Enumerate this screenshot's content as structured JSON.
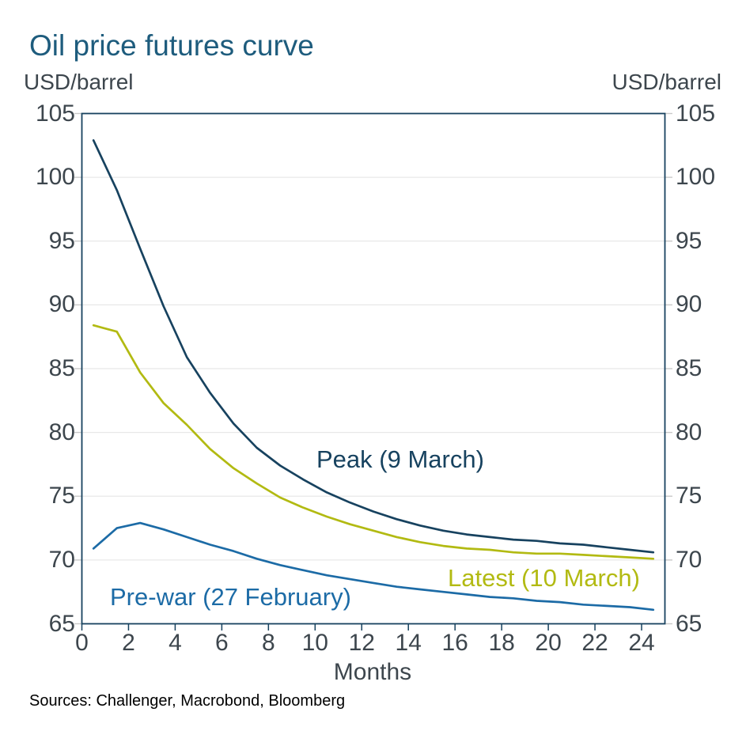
{
  "title": "Oil price futures curve",
  "y_unit_left": "USD/barrel",
  "y_unit_right": "USD/barrel",
  "sources": "Sources: Challenger, Macrobond, Bloomberg",
  "colors": {
    "title": "#1e5c7d",
    "axis_text": "#3d464d",
    "frame": "#17425f",
    "grid": "#e8e8e8",
    "outer_tick": "#c9c9c9",
    "sources_text": "#000000"
  },
  "chart_data": {
    "type": "line",
    "title": "Oil price futures curve",
    "xlabel": "Months",
    "ylabel": "USD/barrel",
    "xlim": [
      0,
      25
    ],
    "ylim": [
      65,
      105
    ],
    "x_ticks": [
      0,
      2,
      4,
      6,
      8,
      10,
      12,
      14,
      16,
      18,
      20,
      22,
      24
    ],
    "y_ticks": [
      65,
      70,
      75,
      80,
      85,
      90,
      95,
      100,
      105
    ],
    "grid": "horizontal",
    "legend_position": "inline-labels",
    "x": [
      0.5,
      1.5,
      2.5,
      3.5,
      4.5,
      5.5,
      6.5,
      7.5,
      8.5,
      9.5,
      10.5,
      11.5,
      12.5,
      13.5,
      14.5,
      15.5,
      16.5,
      17.5,
      18.5,
      19.5,
      20.5,
      21.5,
      22.5,
      23.5,
      24.5
    ],
    "series": [
      {
        "name": "Peak (9 March)",
        "color": "#17425f",
        "values": [
          102.9,
          99.0,
          94.4,
          89.9,
          85.9,
          83.1,
          80.7,
          78.8,
          77.4,
          76.3,
          75.3,
          74.5,
          73.8,
          73.2,
          72.7,
          72.3,
          72.0,
          71.8,
          71.6,
          71.5,
          71.3,
          71.2,
          71.0,
          70.8,
          70.6
        ]
      },
      {
        "name": "Latest (10 March)",
        "color": "#b2ba12",
        "values": [
          88.4,
          87.9,
          84.7,
          82.3,
          80.6,
          78.7,
          77.2,
          76.0,
          74.9,
          74.1,
          73.4,
          72.8,
          72.3,
          71.8,
          71.4,
          71.1,
          70.9,
          70.8,
          70.6,
          70.5,
          70.5,
          70.4,
          70.3,
          70.2,
          70.1
        ]
      },
      {
        "name": "Pre-war (27 February)",
        "color": "#1c6ba6",
        "values": [
          70.9,
          72.5,
          72.9,
          72.4,
          71.8,
          71.2,
          70.7,
          70.1,
          69.6,
          69.2,
          68.8,
          68.5,
          68.2,
          67.9,
          67.7,
          67.5,
          67.3,
          67.1,
          67.0,
          66.8,
          66.7,
          66.5,
          66.4,
          66.3,
          66.1
        ]
      }
    ]
  }
}
